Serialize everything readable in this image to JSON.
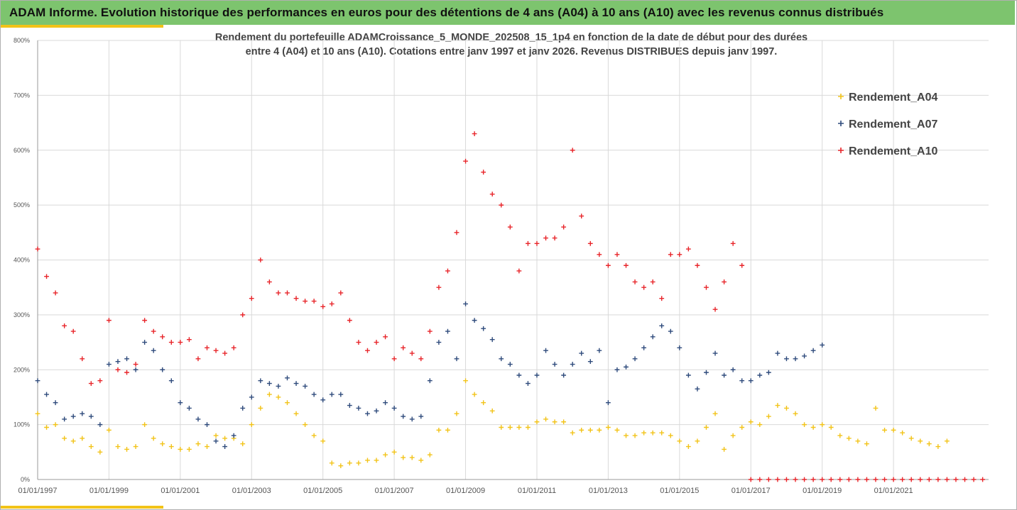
{
  "banner": {
    "title": "ADAM Informe. Evolution historique des performances en euros pour des détentions de 4 ans (A04) à 10 ans (A10) avec les revenus connus distribués",
    "background": "#7dc46e",
    "accent": "#f2c318"
  },
  "chart_data": {
    "type": "scatter",
    "title_line1": "Rendement du portefeuille ADAMCroissance_5_MONDE_202508_15_1p4  en fonction de la date de début pour des durées",
    "title_line2": "entre 4 (A04) et 10 ans (A10). Cotations entre janv 1997 et janv 2026. Revenus DISTRIBUES depuis janv 1997.",
    "xlabel": "",
    "ylabel": "",
    "x_ticks": [
      "01/01/1997",
      "01/01/1999",
      "01/01/2001",
      "01/01/2003",
      "01/01/2005",
      "01/01/2007",
      "01/01/2009",
      "01/01/2011",
      "01/01/2013",
      "01/01/2015",
      "01/01/2017",
      "01/01/2019",
      "01/01/2021"
    ],
    "y_ticks": [
      "0%",
      "100%",
      "200%",
      "300%",
      "400%",
      "500%",
      "600%",
      "700%",
      "800%"
    ],
    "xlim": [
      "01/01/1997",
      "01/09/2023"
    ],
    "ylim": [
      0,
      8
    ],
    "grid": true,
    "legend_position": "top-right",
    "marker": "+",
    "series": [
      {
        "name": "Rendement_A04",
        "color": "#f2c318",
        "x": [
          "1997-01",
          "1997-04",
          "1997-07",
          "1997-10",
          "1998-01",
          "1998-04",
          "1998-07",
          "1998-10",
          "1999-01",
          "1999-04",
          "1999-07",
          "1999-10",
          "2000-01",
          "2000-04",
          "2000-07",
          "2000-10",
          "2001-01",
          "2001-04",
          "2001-07",
          "2001-10",
          "2002-01",
          "2002-04",
          "2002-07",
          "2002-10",
          "2003-01",
          "2003-04",
          "2003-07",
          "2003-10",
          "2004-01",
          "2004-04",
          "2004-07",
          "2004-10",
          "2005-01",
          "2005-04",
          "2005-07",
          "2005-10",
          "2006-01",
          "2006-04",
          "2006-07",
          "2006-10",
          "2007-01",
          "2007-04",
          "2007-07",
          "2007-10",
          "2008-01",
          "2008-04",
          "2008-07",
          "2008-10",
          "2009-01",
          "2009-04",
          "2009-07",
          "2009-10",
          "2010-01",
          "2010-04",
          "2010-07",
          "2010-10",
          "2011-01",
          "2011-04",
          "2011-07",
          "2011-10",
          "2012-01",
          "2012-04",
          "2012-07",
          "2012-10",
          "2013-01",
          "2013-04",
          "2013-07",
          "2013-10",
          "2014-01",
          "2014-04",
          "2014-07",
          "2014-10",
          "2015-01",
          "2015-04",
          "2015-07",
          "2015-10",
          "2016-01",
          "2016-04",
          "2016-07",
          "2016-10",
          "2017-01",
          "2017-04",
          "2017-07",
          "2017-10",
          "2018-01",
          "2018-04",
          "2018-07",
          "2018-10",
          "2019-01",
          "2019-04",
          "2019-07",
          "2019-10",
          "2020-01",
          "2020-04",
          "2020-07",
          "2020-10",
          "2021-01",
          "2021-04",
          "2021-07",
          "2021-10",
          "2022-01",
          "2022-04",
          "2022-07"
        ],
        "values": [
          1.2,
          0.95,
          1.0,
          0.75,
          0.7,
          0.75,
          0.6,
          0.5,
          0.9,
          0.6,
          0.55,
          0.6,
          1.0,
          0.75,
          0.65,
          0.6,
          0.55,
          0.55,
          0.65,
          0.6,
          0.8,
          0.75,
          0.75,
          0.65,
          1.0,
          1.3,
          1.55,
          1.5,
          1.4,
          1.2,
          1.0,
          0.8,
          0.7,
          0.3,
          0.25,
          0.3,
          0.3,
          0.35,
          0.35,
          0.45,
          0.5,
          0.4,
          0.4,
          0.35,
          0.45,
          0.9,
          0.9,
          1.2,
          1.8,
          1.55,
          1.4,
          1.25,
          0.95,
          0.95,
          0.95,
          0.95,
          1.05,
          1.1,
          1.05,
          1.05,
          0.85,
          0.9,
          0.9,
          0.9,
          0.95,
          0.9,
          0.8,
          0.8,
          0.85,
          0.85,
          0.85,
          0.8,
          0.7,
          0.6,
          0.7,
          0.95,
          1.2,
          0.55,
          0.8,
          0.95,
          1.05,
          1.0,
          1.15,
          1.35,
          1.3,
          1.2,
          1.0,
          0.95,
          1.0,
          0.95,
          0.8,
          0.75,
          0.7,
          0.65,
          1.3,
          0.9,
          0.9,
          0.85,
          0.75,
          0.7,
          0.65,
          0.6,
          0.7
        ]
      },
      {
        "name": "Rendement_A07",
        "color": "#2f4b7c",
        "x": [
          "1997-01",
          "1997-04",
          "1997-07",
          "1997-10",
          "1998-01",
          "1998-04",
          "1998-07",
          "1998-10",
          "1999-01",
          "1999-04",
          "1999-07",
          "1999-10",
          "2000-01",
          "2000-04",
          "2000-07",
          "2000-10",
          "2001-01",
          "2001-04",
          "2001-07",
          "2001-10",
          "2002-01",
          "2002-04",
          "2002-07",
          "2002-10",
          "2003-01",
          "2003-04",
          "2003-07",
          "2003-10",
          "2004-01",
          "2004-04",
          "2004-07",
          "2004-10",
          "2005-01",
          "2005-04",
          "2005-07",
          "2005-10",
          "2006-01",
          "2006-04",
          "2006-07",
          "2006-10",
          "2007-01",
          "2007-04",
          "2007-07",
          "2007-10",
          "2008-01",
          "2008-04",
          "2008-07",
          "2008-10",
          "2009-01",
          "2009-04",
          "2009-07",
          "2009-10",
          "2010-01",
          "2010-04",
          "2010-07",
          "2010-10",
          "2011-01",
          "2011-04",
          "2011-07",
          "2011-10",
          "2012-01",
          "2012-04",
          "2012-07",
          "2012-10",
          "2013-01",
          "2013-04",
          "2013-07",
          "2013-10",
          "2014-01",
          "2014-04",
          "2014-07",
          "2014-10",
          "2015-01",
          "2015-04",
          "2015-07",
          "2015-10",
          "2016-01",
          "2016-04",
          "2016-07",
          "2016-10",
          "2017-01",
          "2017-04",
          "2017-07",
          "2017-10",
          "2018-01",
          "2018-04",
          "2018-07",
          "2018-10",
          "2019-01"
        ],
        "values": [
          1.8,
          1.55,
          1.4,
          1.1,
          1.15,
          1.2,
          1.15,
          1.0,
          2.1,
          2.15,
          2.2,
          2.0,
          2.5,
          2.35,
          2.0,
          1.8,
          1.4,
          1.3,
          1.1,
          1.0,
          0.7,
          0.6,
          0.8,
          1.3,
          1.5,
          1.8,
          1.75,
          1.7,
          1.85,
          1.75,
          1.7,
          1.55,
          1.45,
          1.55,
          1.55,
          1.35,
          1.3,
          1.2,
          1.25,
          1.4,
          1.3,
          1.15,
          1.1,
          1.15,
          1.8,
          2.5,
          2.7,
          2.2,
          3.2,
          2.9,
          2.75,
          2.55,
          2.2,
          2.1,
          1.9,
          1.75,
          1.9,
          2.35,
          2.1,
          1.9,
          2.1,
          2.3,
          2.15,
          2.35,
          1.4,
          2.0,
          2.05,
          2.2,
          2.4,
          2.6,
          2.8,
          2.7,
          2.4,
          1.9,
          1.65,
          1.95,
          2.3,
          1.9,
          2.0,
          1.8,
          1.8,
          1.9,
          1.95,
          2.3,
          2.2,
          2.2,
          2.25,
          2.35,
          2.45
        ]
      },
      {
        "name": "Rendement_A10",
        "color": "#e8252a",
        "x": [
          "1997-01",
          "1997-04",
          "1997-07",
          "1997-10",
          "1998-01",
          "1998-04",
          "1998-07",
          "1998-10",
          "1999-01",
          "1999-04",
          "1999-07",
          "1999-10",
          "2000-01",
          "2000-04",
          "2000-07",
          "2000-10",
          "2001-01",
          "2001-04",
          "2001-07",
          "2001-10",
          "2002-01",
          "2002-04",
          "2002-07",
          "2002-10",
          "2003-01",
          "2003-04",
          "2003-07",
          "2003-10",
          "2004-01",
          "2004-04",
          "2004-07",
          "2004-10",
          "2005-01",
          "2005-04",
          "2005-07",
          "2005-10",
          "2006-01",
          "2006-04",
          "2006-07",
          "2006-10",
          "2007-01",
          "2007-04",
          "2007-07",
          "2007-10",
          "2008-01",
          "2008-04",
          "2008-07",
          "2008-10",
          "2009-01",
          "2009-04",
          "2009-07",
          "2009-10",
          "2010-01",
          "2010-04",
          "2010-07",
          "2010-10",
          "2011-01",
          "2011-04",
          "2011-07",
          "2011-10",
          "2012-01",
          "2012-04",
          "2012-07",
          "2012-10",
          "2013-01",
          "2013-04",
          "2013-07",
          "2013-10",
          "2014-01",
          "2014-04",
          "2014-07",
          "2014-10",
          "2015-01",
          "2015-04",
          "2015-07",
          "2015-10",
          "2016-01",
          "2016-04",
          "2016-07",
          "2016-10",
          "2017-01",
          "2017-04",
          "2017-07",
          "2017-10",
          "2018-01",
          "2018-04",
          "2018-07",
          "2018-10",
          "2019-01",
          "2019-04",
          "2019-07",
          "2019-10",
          "2020-01",
          "2020-04",
          "2020-07",
          "2020-10",
          "2021-01",
          "2021-04",
          "2021-07",
          "2021-10",
          "2022-01",
          "2022-04",
          "2022-07",
          "2022-10",
          "2023-01",
          "2023-04",
          "2023-07"
        ],
        "values": [
          4.2,
          3.7,
          3.4,
          2.8,
          2.7,
          2.2,
          1.75,
          1.8,
          2.9,
          2.0,
          1.95,
          2.1,
          2.9,
          2.7,
          2.6,
          2.5,
          2.5,
          2.55,
          2.2,
          2.4,
          2.35,
          2.3,
          2.4,
          3.0,
          3.3,
          4.0,
          3.6,
          3.4,
          3.4,
          3.3,
          3.25,
          3.25,
          3.15,
          3.2,
          3.4,
          2.9,
          2.5,
          2.35,
          2.5,
          2.6,
          2.2,
          2.4,
          2.3,
          2.2,
          2.7,
          3.5,
          3.8,
          4.5,
          5.8,
          6.3,
          5.6,
          5.2,
          5.0,
          4.6,
          3.8,
          4.3,
          4.3,
          4.4,
          4.4,
          4.6,
          6.0,
          4.8,
          4.3,
          4.1,
          3.9,
          4.1,
          3.9,
          3.6,
          3.5,
          3.6,
          3.3,
          4.1,
          4.1,
          4.2,
          3.9,
          3.5,
          3.1,
          3.6,
          4.3,
          3.9,
          0,
          0,
          0,
          0,
          0,
          0,
          0,
          0,
          0,
          0,
          0,
          0,
          0,
          0,
          0,
          0,
          0,
          0,
          0,
          0,
          0,
          0,
          0,
          0,
          0,
          0,
          0
        ]
      }
    ]
  }
}
